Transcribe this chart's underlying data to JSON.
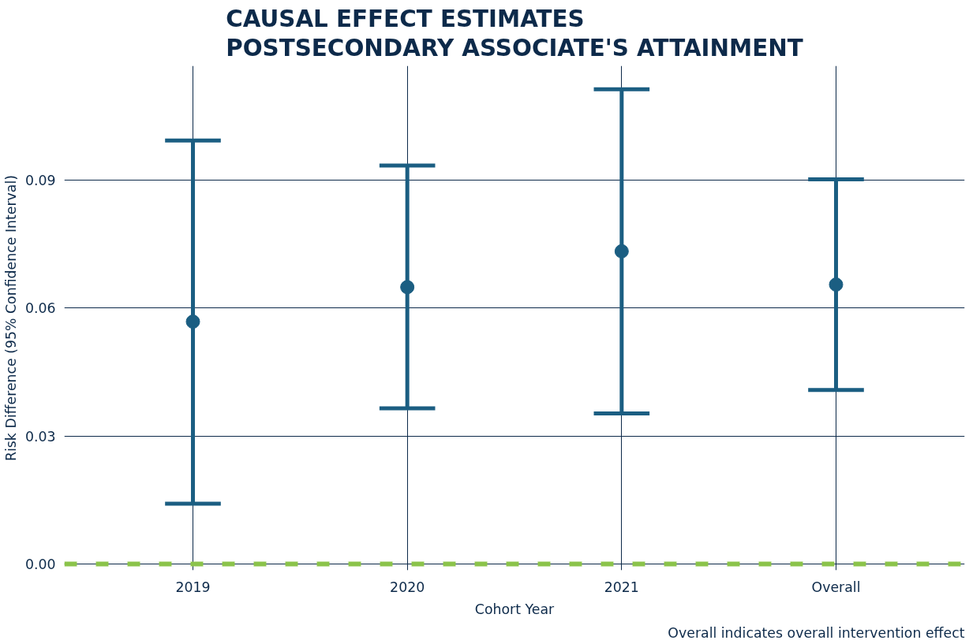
{
  "chart_data": {
    "type": "scatter",
    "title": "CAUSAL EFFECT ESTIMATES\nPOSTSECONDARY ASSOCIATE'S ATTAINMENT",
    "xlabel": "Cohort Year",
    "ylabel": "Risk Difference (95% Confidence Interval)",
    "categories": [
      "2019",
      "2020",
      "2021",
      "Overall"
    ],
    "series": [
      {
        "color": "#1b5e82",
        "values": [
          0.0568,
          0.0649,
          0.0733,
          0.0655
        ],
        "errors": [
          [
            0.0141,
            0.0993
          ],
          [
            0.0365,
            0.0934
          ],
          [
            0.0353,
            0.1113
          ],
          [
            0.0408,
            0.0902
          ]
        ]
      }
    ],
    "ylim": [
      -0.0015,
      0.1168
    ],
    "yticks": [
      {
        "value": 0,
        "label": "0.00"
      },
      {
        "value": 0.03,
        "label": "0.03"
      },
      {
        "value": 0.06,
        "label": "0.06"
      },
      {
        "value": 0.09,
        "label": "0.09"
      }
    ],
    "grid": true,
    "marker": "circle",
    "ref_lines": [
      {
        "axis": "y",
        "value": 0,
        "color": "#8bc34a",
        "line_style": "dashed"
      }
    ],
    "annotations": [
      "Overall indicates overall intervention effect"
    ]
  }
}
